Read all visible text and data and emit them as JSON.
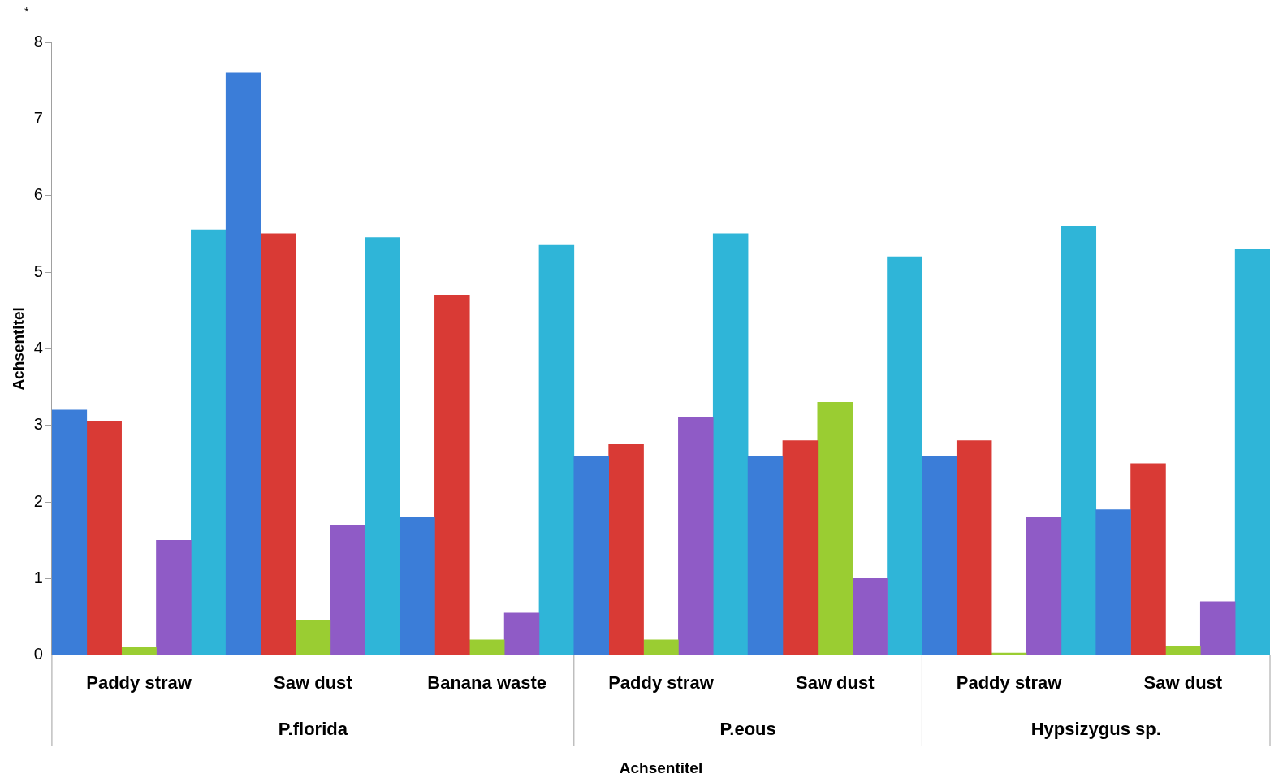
{
  "chart_data": {
    "type": "bar",
    "categories": [
      "Paddy straw",
      "Saw dust",
      "Banana waste",
      "Paddy straw",
      "Saw dust",
      "Paddy straw",
      "Saw dust"
    ],
    "series": [
      {
        "color": "#3b7dd8",
        "values": [
          3.2,
          7.6,
          1.8,
          2.6,
          2.6,
          2.6,
          1.9
        ]
      },
      {
        "color": "#d93a35",
        "values": [
          3.05,
          5.5,
          4.7,
          2.75,
          2.8,
          2.8,
          2.5
        ]
      },
      {
        "color": "#9acd32",
        "values": [
          0.1,
          0.45,
          0.2,
          0.2,
          3.3,
          0.03,
          0.12
        ]
      },
      {
        "color": "#8f5bc6",
        "values": [
          1.5,
          1.7,
          0.55,
          3.1,
          1.0,
          1.8,
          0.7
        ]
      },
      {
        "color": "#2fb5d8",
        "values": [
          5.55,
          5.45,
          5.35,
          5.5,
          5.2,
          5.6,
          5.3
        ]
      }
    ],
    "ylim": [
      0,
      8
    ],
    "yticks": [
      0,
      1,
      2,
      3,
      4,
      5,
      6,
      7,
      8
    ],
    "xlabel": "Achsentitel",
    "ylabel": "Achsentitel",
    "annotations": [
      "P.florida",
      "P.eous",
      "Hypsizygus sp.",
      "*"
    ],
    "grid": false,
    "legend": false
  }
}
